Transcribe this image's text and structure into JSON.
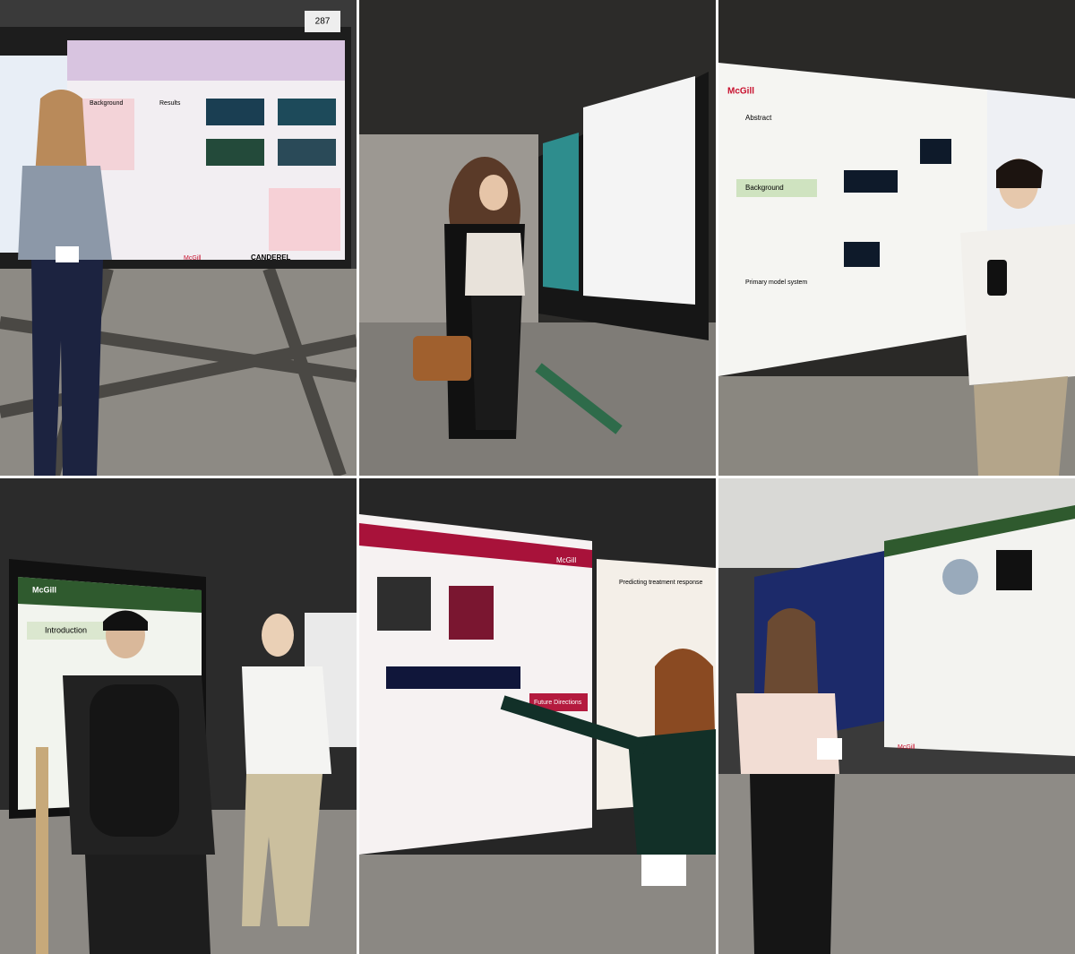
{
  "panel_1": {
    "texts": [
      "287",
      "Background",
      "Results",
      "CANDEREL",
      "McGill"
    ]
  },
  "panel_3": {
    "texts": [
      "McGill",
      "Abstract",
      "Background",
      "Primary model system"
    ]
  },
  "panel_4": {
    "texts": [
      "McGill",
      "Introduction"
    ]
  },
  "panel_5": {
    "texts": [
      "McGill",
      "Future Directions",
      "Predicting treatment response"
    ]
  },
  "panel_6": {
    "texts": [
      "McGill"
    ]
  }
}
